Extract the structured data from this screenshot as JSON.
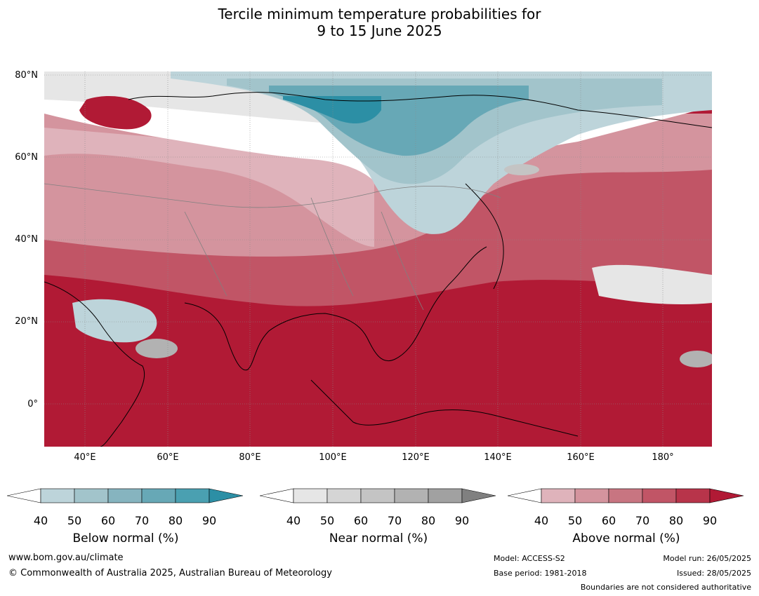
{
  "title_line1": "Tercile minimum temperature probabilities for",
  "title_line2": "9 to 15 June 2025",
  "map": {
    "lat_labels": [
      "80°N",
      "60°N",
      "40°N",
      "20°N",
      "0°"
    ],
    "lon_labels": [
      "40°E",
      "60°E",
      "80°E",
      "100°E",
      "120°E",
      "140°E",
      "160°E",
      "180°"
    ],
    "colors": {
      "above_dominant": "#b11a35",
      "land_outline": "#000000",
      "boundary": "#808080"
    }
  },
  "legends": [
    {
      "title": "Below normal (%)",
      "ticks": [
        "40",
        "50",
        "60",
        "70",
        "80",
        "90"
      ],
      "colors": [
        "#ffffff",
        "#bdd4da",
        "#a2c4cb",
        "#86b4bf",
        "#67a8b6",
        "#4aa0b1",
        "#2c8fa5"
      ]
    },
    {
      "title": "Near normal (%)",
      "ticks": [
        "40",
        "50",
        "60",
        "70",
        "80",
        "90"
      ],
      "colors": [
        "#ffffff",
        "#e6e6e6",
        "#d5d5d5",
        "#c4c4c4",
        "#b2b2b2",
        "#a1a1a1",
        "#808080"
      ]
    },
    {
      "title": "Above normal (%)",
      "ticks": [
        "40",
        "50",
        "60",
        "70",
        "80",
        "90"
      ],
      "colors": [
        "#ffffff",
        "#dfb3bb",
        "#d4949e",
        "#c87581",
        "#c15566",
        "#b8344a",
        "#b11a35"
      ]
    }
  ],
  "footer": {
    "website": "www.bom.gov.au/climate",
    "copyright": "© Commonwealth of Australia 2025, Australian Bureau of Meteorology",
    "model": "Model: ACCESS-S2",
    "base_period": "Base period: 1981-2018",
    "model_run": "Model run: 26/05/2025",
    "issued": "Issued: 28/05/2025",
    "disclaimer": "Boundaries are not considered authoritative"
  }
}
